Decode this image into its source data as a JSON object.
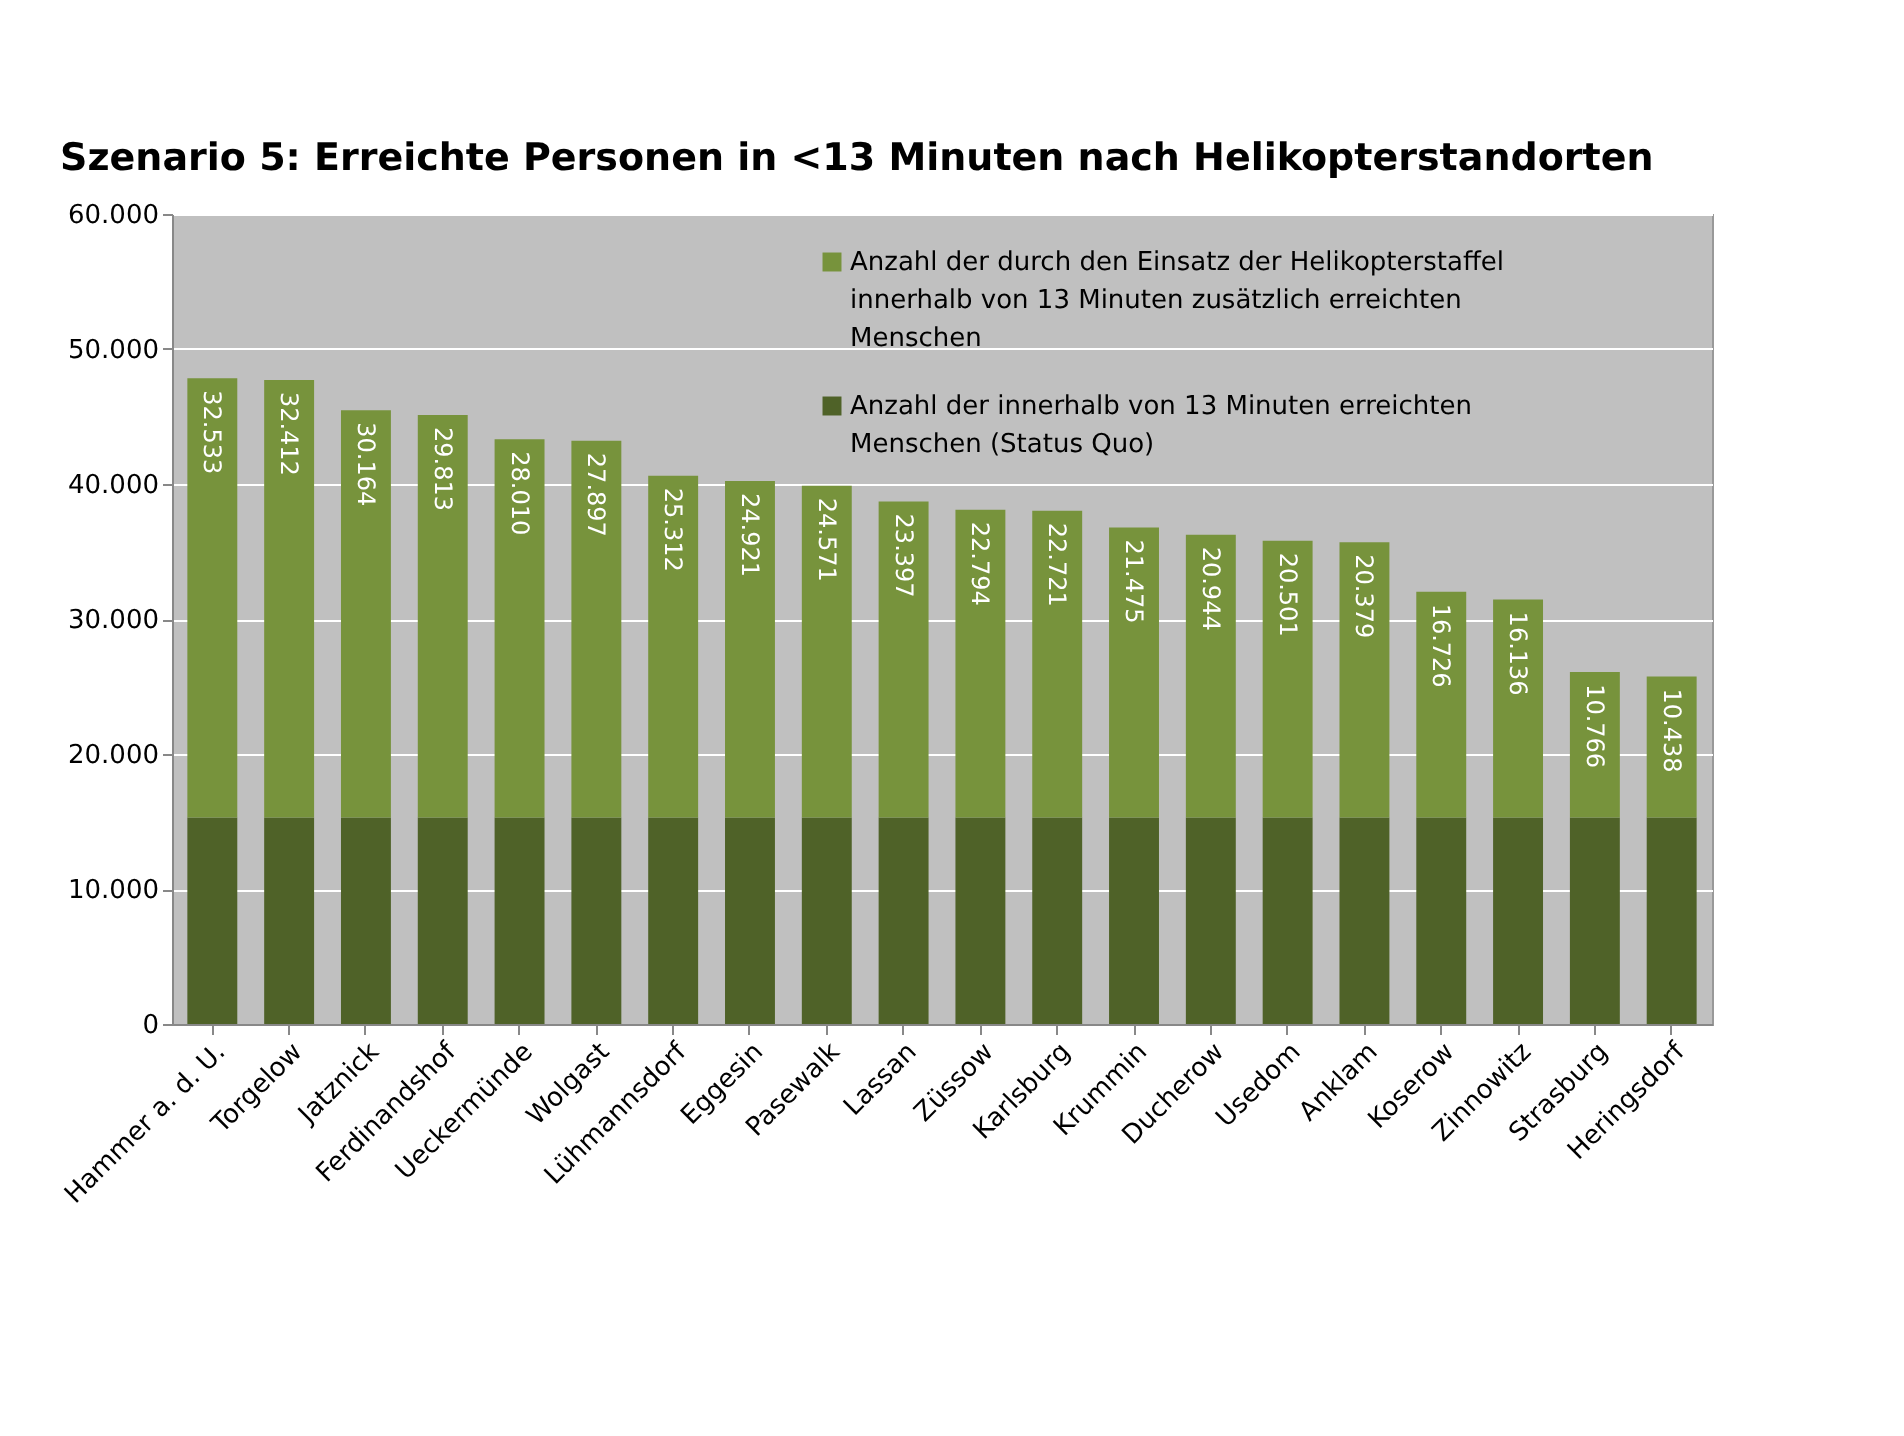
{
  "chart_data": {
    "type": "bar",
    "stacked": true,
    "title": "Szenario 5: Erreichte Personen in <13 Minuten nach Helikopterstandorten",
    "categories": [
      "Hammer a. d. U.",
      "Torgelow",
      "Jatznick",
      "Ferdinandshof",
      "Ueckermünde",
      "Wolgast",
      "Lühmannsdorf",
      "Eggesin",
      "Pasewalk",
      "Lassan",
      "Züssow",
      "Karlsburg",
      "Krummin",
      "Ducherow",
      "Usedom",
      "Anklam",
      "Koserow",
      "Zinnowitz",
      "Strasburg",
      "Heringsdorf"
    ],
    "series": [
      {
        "name": "Anzahl der innerhalb von 13 Minuten erreichten Menschen (Status Quo)",
        "color": "#4f6228",
        "values": [
          15300,
          15300,
          15300,
          15300,
          15300,
          15300,
          15300,
          15300,
          15300,
          15300,
          15300,
          15300,
          15300,
          15300,
          15300,
          15300,
          15300,
          15300,
          15300,
          15300
        ]
      },
      {
        "name": "Anzahl der durch den Einsatz der Helikopterstaffel innerhalb von 13 Minuten zusätzlich erreichten Menschen",
        "color": "#77933c",
        "values": [
          32533,
          32412,
          30164,
          29813,
          28010,
          27897,
          25312,
          24921,
          24571,
          23397,
          22794,
          22721,
          21475,
          20944,
          20501,
          20379,
          16726,
          16136,
          10766,
          10438
        ],
        "value_labels": [
          "32.533",
          "32.412",
          "30.164",
          "29.813",
          "28.010",
          "27.897",
          "25.312",
          "24.921",
          "24.571",
          "23.397",
          "22.794",
          "22.721",
          "21.475",
          "20.944",
          "20.501",
          "20.379",
          "16.726",
          "16.136",
          "10.766",
          "10.438"
        ]
      }
    ],
    "ylim": [
      0,
      60000
    ],
    "yticks": [
      0,
      {
        "value": 10000,
        "label": "10.000"
      },
      {
        "value": 20000,
        "label": "20.000"
      },
      {
        "value": 30000,
        "label": "30.000"
      },
      {
        "value": 40000,
        "label": "40.000"
      },
      {
        "value": 50000,
        "label": "50.000"
      },
      {
        "value": 60000,
        "label": "60.000"
      }
    ],
    "grid": "y",
    "legend": "top right"
  }
}
